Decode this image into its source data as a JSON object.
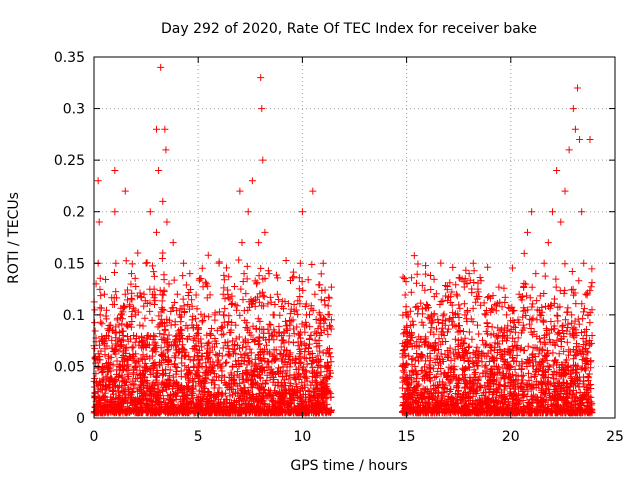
{
  "chart_data": {
    "type": "scatter",
    "title": "Day 292 of 2020, Rate Of TEC Index for receiver bake",
    "xlabel": "GPS time / hours",
    "ylabel": "ROTI / TECUs",
    "xlim": [
      0,
      25
    ],
    "ylim": [
      0,
      0.35
    ],
    "x_ticks": [
      "0",
      "5",
      "10",
      "15",
      "20",
      "25"
    ],
    "y_ticks": [
      "0",
      "0.05",
      "0.1",
      "0.15",
      "0.2",
      "0.25",
      "0.3",
      "0.35"
    ],
    "grid": true,
    "legend": "none",
    "marker": "plus",
    "color": "#ff0000",
    "series": [
      {
        "x": [
          0.0,
          0.1,
          0.2,
          0.2,
          0.25,
          0.3,
          0.4,
          0.5,
          0.6,
          0.7,
          0.8,
          0.9,
          1.0,
          1.0,
          1.05,
          1.1,
          1.2,
          1.3,
          1.4,
          1.5,
          1.5,
          1.6,
          1.7,
          1.8,
          1.9,
          2.0,
          2.0,
          2.1,
          2.2,
          2.3,
          2.4,
          2.5,
          2.6,
          2.7,
          2.8,
          2.9,
          3.0,
          3.0,
          3.1,
          3.2,
          3.3,
          3.3,
          3.4,
          3.45,
          3.5,
          3.6,
          3.7,
          3.8,
          3.9,
          4.0,
          4.1,
          4.2,
          4.3,
          4.4,
          4.5,
          4.6,
          4.7,
          4.8,
          4.9,
          5.0,
          5.2,
          5.4,
          5.6,
          5.8,
          6.0,
          6.2,
          6.4,
          6.6,
          6.8,
          7.0,
          7.1,
          7.2,
          7.4,
          7.6,
          7.8,
          7.9,
          8.0,
          8.05,
          8.1,
          8.2,
          8.4,
          8.6,
          8.8,
          9.0,
          9.2,
          9.4,
          9.6,
          9.8,
          9.9,
          10.0,
          10.2,
          10.4,
          10.5,
          10.6,
          10.8,
          11.0,
          11.2,
          11.3,
          14.8,
          14.9,
          15.0,
          15.1,
          15.2,
          15.4,
          15.6,
          15.8,
          16.0,
          16.2,
          16.4,
          16.6,
          16.8,
          17.0,
          17.2,
          17.4,
          17.6,
          17.8,
          18.0,
          18.2,
          18.4,
          18.6,
          18.8,
          19.0,
          19.2,
          19.4,
          19.6,
          19.8,
          20.0,
          20.2,
          20.4,
          20.6,
          20.8,
          21.0,
          21.2,
          21.4,
          21.6,
          21.8,
          22.0,
          22.2,
          22.4,
          22.6,
          22.8,
          23.0,
          23.1,
          23.2,
          23.3,
          23.4,
          23.5,
          23.6,
          23.7,
          23.8,
          23.9
        ],
        "y": [
          0.07,
          0.13,
          0.15,
          0.23,
          0.19,
          0.1,
          0.05,
          0.12,
          0.08,
          0.06,
          0.09,
          0.11,
          0.24,
          0.2,
          0.15,
          0.07,
          0.05,
          0.1,
          0.08,
          0.12,
          0.22,
          0.09,
          0.06,
          0.14,
          0.08,
          0.05,
          0.1,
          0.16,
          0.09,
          0.07,
          0.12,
          0.15,
          0.08,
          0.2,
          0.06,
          0.11,
          0.18,
          0.28,
          0.24,
          0.34,
          0.21,
          0.16,
          0.28,
          0.26,
          0.19,
          0.13,
          0.09,
          0.17,
          0.07,
          0.12,
          0.1,
          0.08,
          0.15,
          0.06,
          0.11,
          0.14,
          0.09,
          0.05,
          0.07,
          0.04,
          0.06,
          0.13,
          0.08,
          0.1,
          0.15,
          0.12,
          0.07,
          0.11,
          0.09,
          0.22,
          0.17,
          0.14,
          0.2,
          0.23,
          0.13,
          0.17,
          0.33,
          0.3,
          0.25,
          0.18,
          0.14,
          0.1,
          0.12,
          0.08,
          0.06,
          0.09,
          0.11,
          0.07,
          0.15,
          0.2,
          0.1,
          0.08,
          0.22,
          0.12,
          0.07,
          0.15,
          0.05,
          0.04,
          0.05,
          0.07,
          0.1,
          0.06,
          0.08,
          0.05,
          0.07,
          0.09,
          0.06,
          0.1,
          0.07,
          0.11,
          0.08,
          0.06,
          0.09,
          0.12,
          0.07,
          0.1,
          0.14,
          0.15,
          0.09,
          0.06,
          0.1,
          0.07,
          0.05,
          0.08,
          0.06,
          0.1,
          0.05,
          0.07,
          0.12,
          0.09,
          0.18,
          0.2,
          0.14,
          0.1,
          0.15,
          0.17,
          0.2,
          0.24,
          0.19,
          0.22,
          0.26,
          0.3,
          0.28,
          0.32,
          0.27,
          0.2,
          0.15,
          0.12,
          0.1,
          0.27,
          0.08
        ]
      }
    ]
  }
}
